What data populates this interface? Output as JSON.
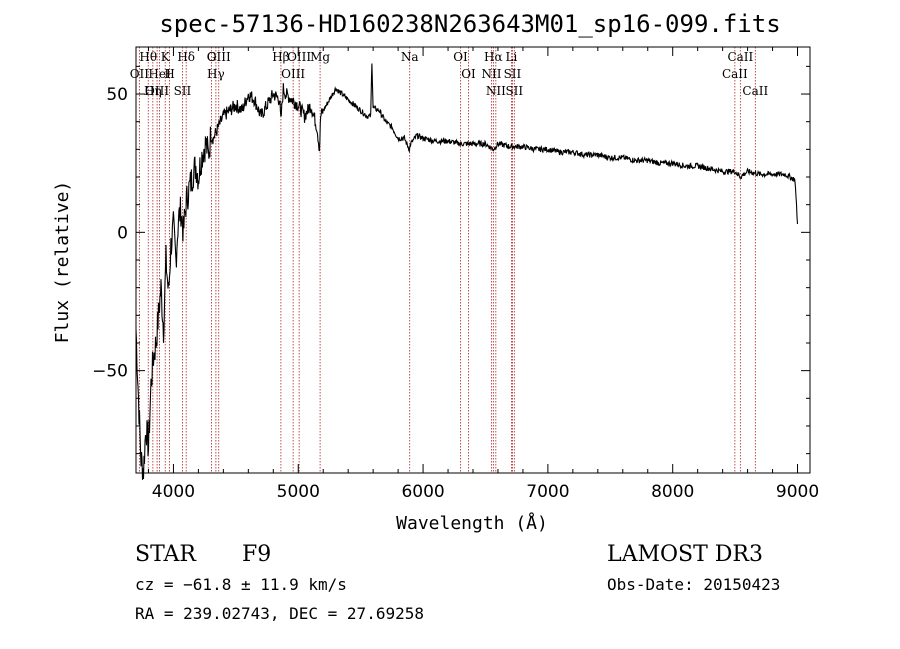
{
  "chart_data": {
    "type": "line",
    "title": "spec-57136-HD160238N263643M01_sp16-099.fits",
    "xlabel": "Wavelength (Å)",
    "ylabel": "Flux (relative)",
    "xlim": [
      3700,
      9100
    ],
    "ylim": [
      -87,
      67
    ],
    "xticks": [
      4000,
      5000,
      6000,
      7000,
      8000,
      9000
    ],
    "yticks": [
      -50,
      0,
      50
    ],
    "grid": false,
    "series": [
      {
        "x": [
          3700,
          3720,
          3740,
          3760,
          3780,
          3800,
          3820,
          3840,
          3860,
          3880,
          3900,
          3920,
          3940,
          3960,
          3980,
          4000,
          4020,
          4040,
          4060,
          4080,
          4100,
          4120,
          4140,
          4160,
          4180,
          4200,
          4220,
          4240,
          4260,
          4280,
          4300,
          4320,
          4340,
          4360,
          4380,
          4400,
          4450,
          4500,
          4550,
          4600,
          4650,
          4700,
          4750,
          4800,
          4850,
          4860,
          4880,
          4900,
          4950,
          5000,
          5050,
          5100,
          5150,
          5170,
          5180,
          5200,
          5250,
          5300,
          5350,
          5400,
          5450,
          5500,
          5550,
          5580,
          5590,
          5600,
          5650,
          5700,
          5750,
          5800,
          5850,
          5890,
          5900,
          5950,
          6000,
          6100,
          6200,
          6300,
          6400,
          6500,
          6563,
          6600,
          6700,
          6800,
          6900,
          7000,
          7100,
          7200,
          7300,
          7400,
          7500,
          7600,
          7700,
          7800,
          7900,
          8000,
          8100,
          8200,
          8300,
          8400,
          8500,
          8542,
          8600,
          8700,
          8800,
          8900,
          8980,
          9000
        ],
        "y": [
          -35,
          -60,
          -82,
          -86,
          -70,
          -78,
          -55,
          -45,
          -40,
          -30,
          -20,
          -35,
          -10,
          -22,
          -5,
          2,
          -10,
          5,
          8,
          0,
          10,
          15,
          18,
          22,
          24,
          20,
          26,
          30,
          32,
          28,
          35,
          34,
          36,
          38,
          40,
          42,
          44,
          46,
          44,
          50,
          48,
          42,
          46,
          50,
          48,
          40,
          52,
          50,
          48,
          46,
          42,
          46,
          38,
          30,
          42,
          44,
          48,
          52,
          50,
          48,
          46,
          44,
          42,
          42,
          62,
          45,
          44,
          40,
          38,
          34,
          34,
          30,
          32,
          35,
          34,
          33,
          33,
          32,
          32,
          32,
          30,
          32,
          31,
          31,
          30,
          30,
          29,
          29,
          28,
          28,
          27,
          27,
          26,
          26,
          25,
          25,
          24,
          24,
          23,
          22,
          22,
          20,
          22,
          21,
          21,
          21,
          19,
          3
        ]
      }
    ],
    "spectral_lines": [
      {
        "name": "Hθ",
        "wavelength": 3798
      },
      {
        "name": "OII",
        "wavelength": 3727
      },
      {
        "name": "OIII",
        "wavelength": 3869
      },
      {
        "name": "HeI",
        "wavelength": 3889
      },
      {
        "name": "Hη",
        "wavelength": 3835
      },
      {
        "name": "K",
        "wavelength": 3934
      },
      {
        "name": "H",
        "wavelength": 3969
      },
      {
        "name": "SII",
        "wavelength": 4072
      },
      {
        "name": "Hδ",
        "wavelength": 4102
      },
      {
        "name": "OIII",
        "wavelength": 4363
      },
      {
        "name": "Hγ",
        "wavelength": 4340
      },
      {
        "name": "G",
        "wavelength": 4305
      },
      {
        "name": "OIII",
        "wavelength": 5007
      },
      {
        "name": "OIII",
        "wavelength": 4959
      },
      {
        "name": "Hβ",
        "wavelength": 4861
      },
      {
        "name": "Mg",
        "wavelength": 5175
      },
      {
        "name": "Na",
        "wavelength": 5893
      },
      {
        "name": "OI",
        "wavelength": 6300
      },
      {
        "name": "OI",
        "wavelength": 6364
      },
      {
        "name": "Hα",
        "wavelength": 6563
      },
      {
        "name": "NII",
        "wavelength": 6548
      },
      {
        "name": "NII",
        "wavelength": 6583
      },
      {
        "name": "SII",
        "wavelength": 6716
      },
      {
        "name": "Li",
        "wavelength": 6708
      },
      {
        "name": "SII",
        "wavelength": 6731
      },
      {
        "name": "CaII",
        "wavelength": 8542
      },
      {
        "name": "CaII",
        "wavelength": 8498
      },
      {
        "name": "CaII",
        "wavelength": 8662
      }
    ]
  },
  "info": {
    "object_type": "STAR",
    "subclass": "F9",
    "survey": "LAMOST DR3",
    "cz": "cz = −61.8 ± 11.9 km/s",
    "obs_date": "Obs-Date: 20150423",
    "coords": "RA = 239.02743, DEC =  27.69258"
  },
  "colors": {
    "lines": "#b22222",
    "spectrum": "#000000"
  }
}
